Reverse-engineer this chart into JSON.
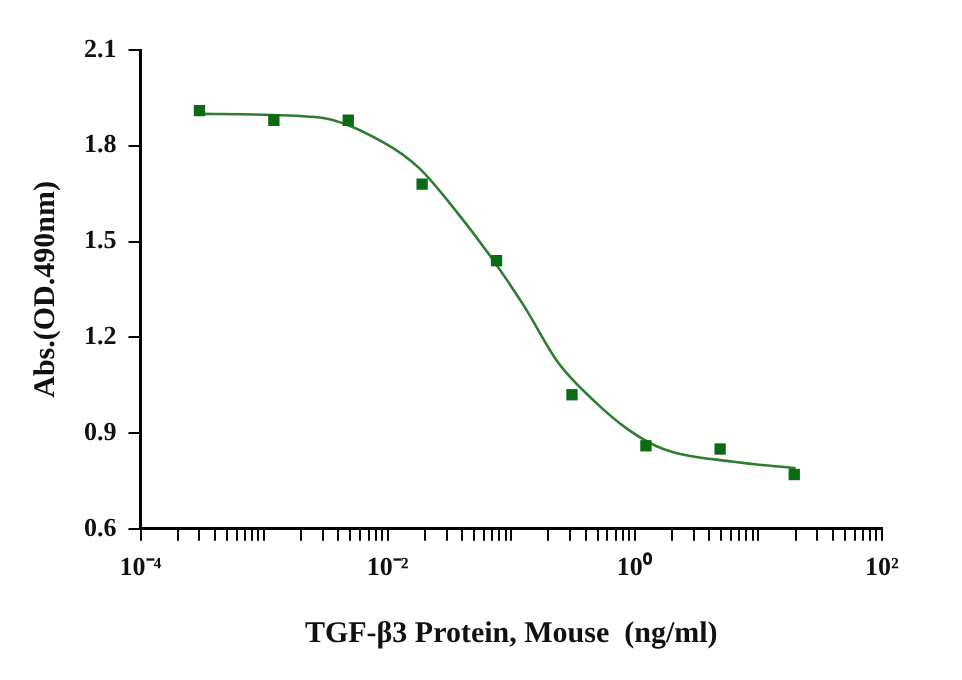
{
  "chart_data": {
    "type": "scatter",
    "xlabel": "TGF-β3 Protein, Mouse  (ng/ml)",
    "ylabel": "Abs.(OD.490nm)",
    "log": "x",
    "grid": false,
    "legend": false,
    "xlim": [
      0.0001,
      100
    ],
    "ylim": [
      0.6,
      2.1
    ],
    "yticks": [
      0.6,
      0.9,
      1.2,
      1.5,
      1.8,
      2.1
    ],
    "xticks": [
      {
        "value": 0.0001,
        "label": "10⁻⁴"
      },
      {
        "value": 0.0002,
        "label": null
      },
      {
        "value": 0.0003,
        "label": null
      },
      {
        "value": 0.0004,
        "label": null
      },
      {
        "value": 0.0005,
        "label": null
      },
      {
        "value": 0.0006,
        "label": null
      },
      {
        "value": 0.0007,
        "label": null
      },
      {
        "value": 0.0008,
        "label": null
      },
      {
        "value": 0.0009,
        "label": null
      },
      {
        "value": 0.001,
        "label": null
      },
      {
        "value": 0.002,
        "label": null
      },
      {
        "value": 0.003,
        "label": null
      },
      {
        "value": 0.004,
        "label": null
      },
      {
        "value": 0.005,
        "label": null
      },
      {
        "value": 0.006,
        "label": null
      },
      {
        "value": 0.007,
        "label": null
      },
      {
        "value": 0.008,
        "label": null
      },
      {
        "value": 0.009,
        "label": null
      },
      {
        "value": 0.01,
        "label": "10⁻²"
      },
      {
        "value": 0.02,
        "label": null
      },
      {
        "value": 0.03,
        "label": null
      },
      {
        "value": 0.04,
        "label": null
      },
      {
        "value": 0.05,
        "label": null
      },
      {
        "value": 0.06,
        "label": null
      },
      {
        "value": 0.07,
        "label": null
      },
      {
        "value": 0.08,
        "label": null
      },
      {
        "value": 0.09,
        "label": null
      },
      {
        "value": 0.1,
        "label": null
      },
      {
        "value": 0.2,
        "label": null
      },
      {
        "value": 0.3,
        "label": null
      },
      {
        "value": 0.4,
        "label": null
      },
      {
        "value": 0.5,
        "label": null
      },
      {
        "value": 0.6,
        "label": null
      },
      {
        "value": 0.7,
        "label": null
      },
      {
        "value": 0.8,
        "label": null
      },
      {
        "value": 0.9,
        "label": null
      },
      {
        "value": 1,
        "label": "10⁰"
      },
      {
        "value": 2,
        "label": null
      },
      {
        "value": 3,
        "label": null
      },
      {
        "value": 4,
        "label": null
      },
      {
        "value": 5,
        "label": null
      },
      {
        "value": 6,
        "label": null
      },
      {
        "value": 7,
        "label": null
      },
      {
        "value": 8,
        "label": null
      },
      {
        "value": 9,
        "label": null
      },
      {
        "value": 10,
        "label": null
      },
      {
        "value": 20,
        "label": null
      },
      {
        "value": 30,
        "label": null
      },
      {
        "value": 40,
        "label": null
      },
      {
        "value": 50,
        "label": null
      },
      {
        "value": 60,
        "label": null
      },
      {
        "value": 70,
        "label": null
      },
      {
        "value": 80,
        "label": null
      },
      {
        "value": 90,
        "label": null
      },
      {
        "value": 100,
        "label": "10²"
      }
    ],
    "series": [
      {
        "marker": "square",
        "color": "#0b6b12",
        "x": [
          0.0003,
          0.0012,
          0.0048,
          0.019,
          0.076,
          0.31,
          1.23,
          4.9,
          19.5
        ],
        "values": [
          1.91,
          1.88,
          1.88,
          1.68,
          1.44,
          1.02,
          0.86,
          0.85,
          0.77
        ]
      },
      {
        "type": "line",
        "marker": "none",
        "line_style": "solid",
        "color": "#2f7d32",
        "x": [
          0.0003,
          0.0026,
          0.0093,
          0.018,
          0.035,
          0.066,
          0.126,
          0.24,
          0.47,
          0.89,
          1.7,
          6.3,
          20
        ],
        "values": [
          1.9,
          1.89,
          1.81,
          1.73,
          1.6,
          1.46,
          1.3,
          1.12,
          1.0,
          0.91,
          0.85,
          0.81,
          0.79
        ]
      }
    ]
  }
}
